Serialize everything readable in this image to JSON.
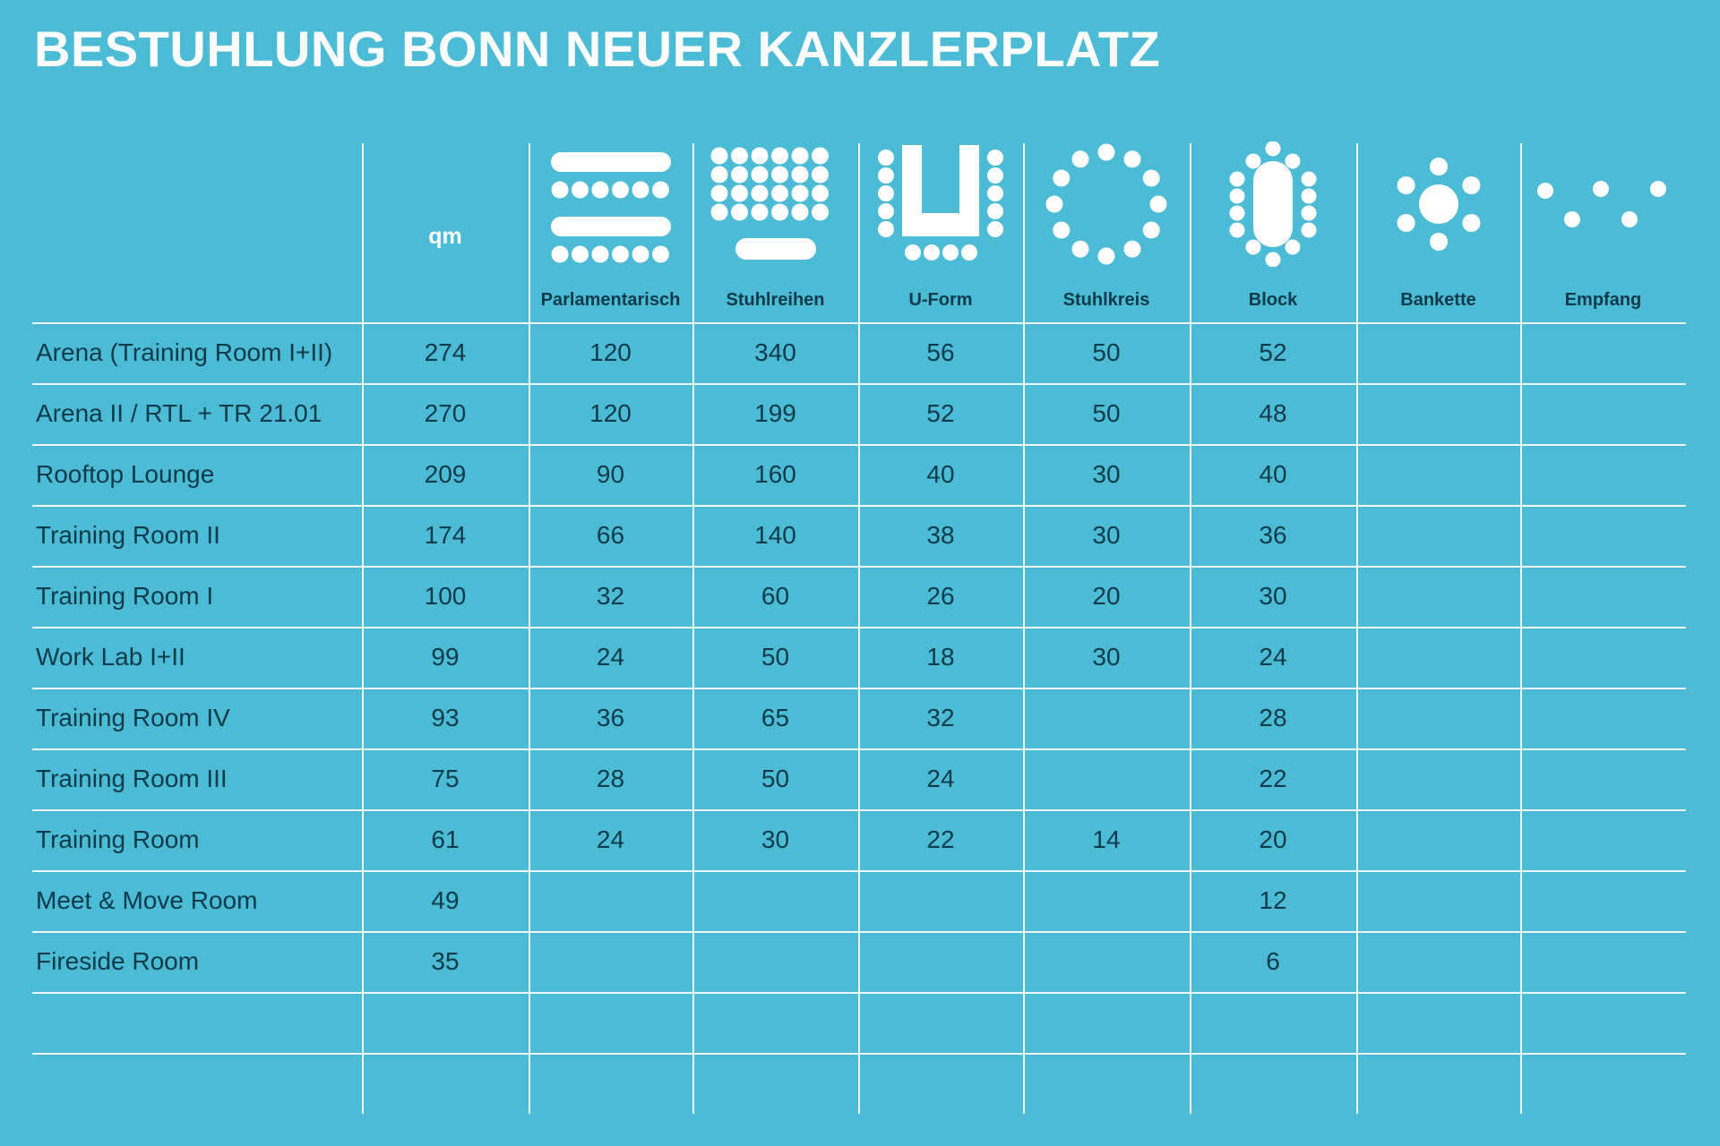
{
  "title": "BESTUHLUNG BONN NEUER KANZLERPLATZ",
  "colors": {
    "background": "#4bbbd6",
    "text": "#0e3a4a",
    "lines": "#ffffff",
    "icons": "#ffffff"
  },
  "header": {
    "qm": "qm",
    "columns": [
      {
        "label": "Parlamentarisch",
        "icon": "parlamentarisch-icon"
      },
      {
        "label": "Stuhlreihen",
        "icon": "stuhlreihen-icon"
      },
      {
        "label": "U-Form",
        "icon": "u-form-icon"
      },
      {
        "label": "Stuhlkreis",
        "icon": "stuhlkreis-icon"
      },
      {
        "label": "Block",
        "icon": "block-icon"
      },
      {
        "label": "Bankette",
        "icon": "bankette-icon"
      },
      {
        "label": "Empfang",
        "icon": "empfang-icon"
      }
    ]
  },
  "rows": [
    {
      "name": "Arena (Training Room I+II)",
      "qm": "274",
      "values": [
        "120",
        "340",
        "56",
        "50",
        "52",
        "",
        ""
      ]
    },
    {
      "name": "Arena II / RTL + TR 21.01",
      "qm": "270",
      "values": [
        "120",
        "199",
        "52",
        "50",
        "48",
        "",
        ""
      ]
    },
    {
      "name": "Rooftop Lounge",
      "qm": "209",
      "values": [
        "90",
        "160",
        "40",
        "30",
        "40",
        "",
        ""
      ]
    },
    {
      "name": "Training Room II",
      "qm": "174",
      "values": [
        "66",
        "140",
        "38",
        "30",
        "36",
        "",
        ""
      ]
    },
    {
      "name": "Training Room I",
      "qm": "100",
      "values": [
        "32",
        "60",
        "26",
        "20",
        "30",
        "",
        ""
      ]
    },
    {
      "name": "Work Lab I+II",
      "qm": "99",
      "values": [
        "24",
        "50",
        "18",
        "30",
        "24",
        "",
        ""
      ]
    },
    {
      "name": "Training Room IV",
      "qm": "93",
      "values": [
        "36",
        "65",
        "32",
        "",
        "28",
        "",
        ""
      ]
    },
    {
      "name": "Training Room III",
      "qm": "75",
      "values": [
        "28",
        "50",
        "24",
        "",
        "22",
        "",
        ""
      ]
    },
    {
      "name": "Training Room",
      "qm": "61",
      "values": [
        "24",
        "30",
        "22",
        "14",
        "20",
        "",
        ""
      ]
    },
    {
      "name": "Meet & Move Room",
      "qm": "49",
      "values": [
        "",
        "",
        "",
        "",
        "12",
        "",
        ""
      ]
    },
    {
      "name": "Fireside Room",
      "qm": "35",
      "values": [
        "",
        "",
        "",
        "",
        "6",
        "",
        ""
      ]
    },
    {
      "name": "",
      "qm": "",
      "values": [
        "",
        "",
        "",
        "",
        "",
        "",
        ""
      ]
    }
  ]
}
